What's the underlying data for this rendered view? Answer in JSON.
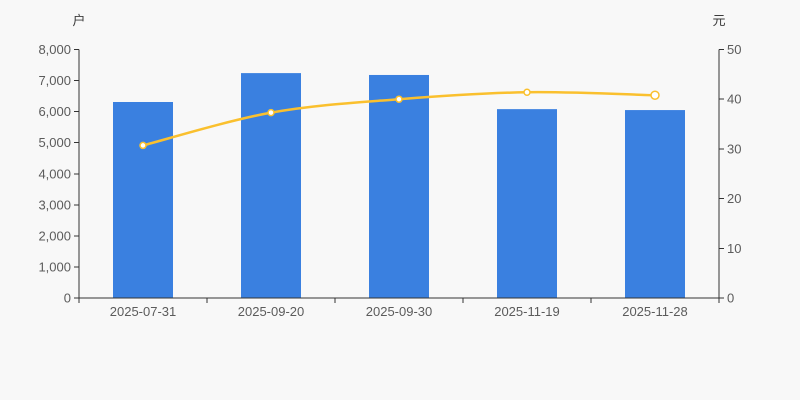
{
  "chart_data": {
    "type": "bar",
    "title": "",
    "categories": [
      "2025-07-31",
      "2025-09-20",
      "2025-09-30",
      "2025-11-19",
      "2025-11-28"
    ],
    "series": [
      {
        "name": "bar_series",
        "type": "bar",
        "y_axis": "left",
        "unit": "户",
        "color": "#3a80e0",
        "values": [
          6310,
          7240,
          7180,
          6080,
          6050
        ]
      },
      {
        "name": "line_series",
        "type": "line",
        "y_axis": "right",
        "unit": "元",
        "color": "#fac02e",
        "marker": "hollow-circle",
        "smooth": true,
        "values": [
          30.7,
          37.3,
          40.0,
          41.4,
          40.8
        ]
      }
    ],
    "left_axis": {
      "unit": "户",
      "min": 0,
      "max": 8000,
      "step": 1000,
      "tick_labels": [
        "0",
        "1,000",
        "2,000",
        "3,000",
        "4,000",
        "5,000",
        "6,000",
        "7,000",
        "8,000"
      ]
    },
    "right_axis": {
      "unit": "元",
      "min": 0,
      "max": 50,
      "step": 10,
      "tick_labels": [
        "0",
        "10",
        "20",
        "30",
        "40",
        "50"
      ]
    },
    "legend": "none",
    "grid": false,
    "background": "#f8f8f8",
    "text_color": "#5b5b5b",
    "axis_color": "#333333"
  }
}
